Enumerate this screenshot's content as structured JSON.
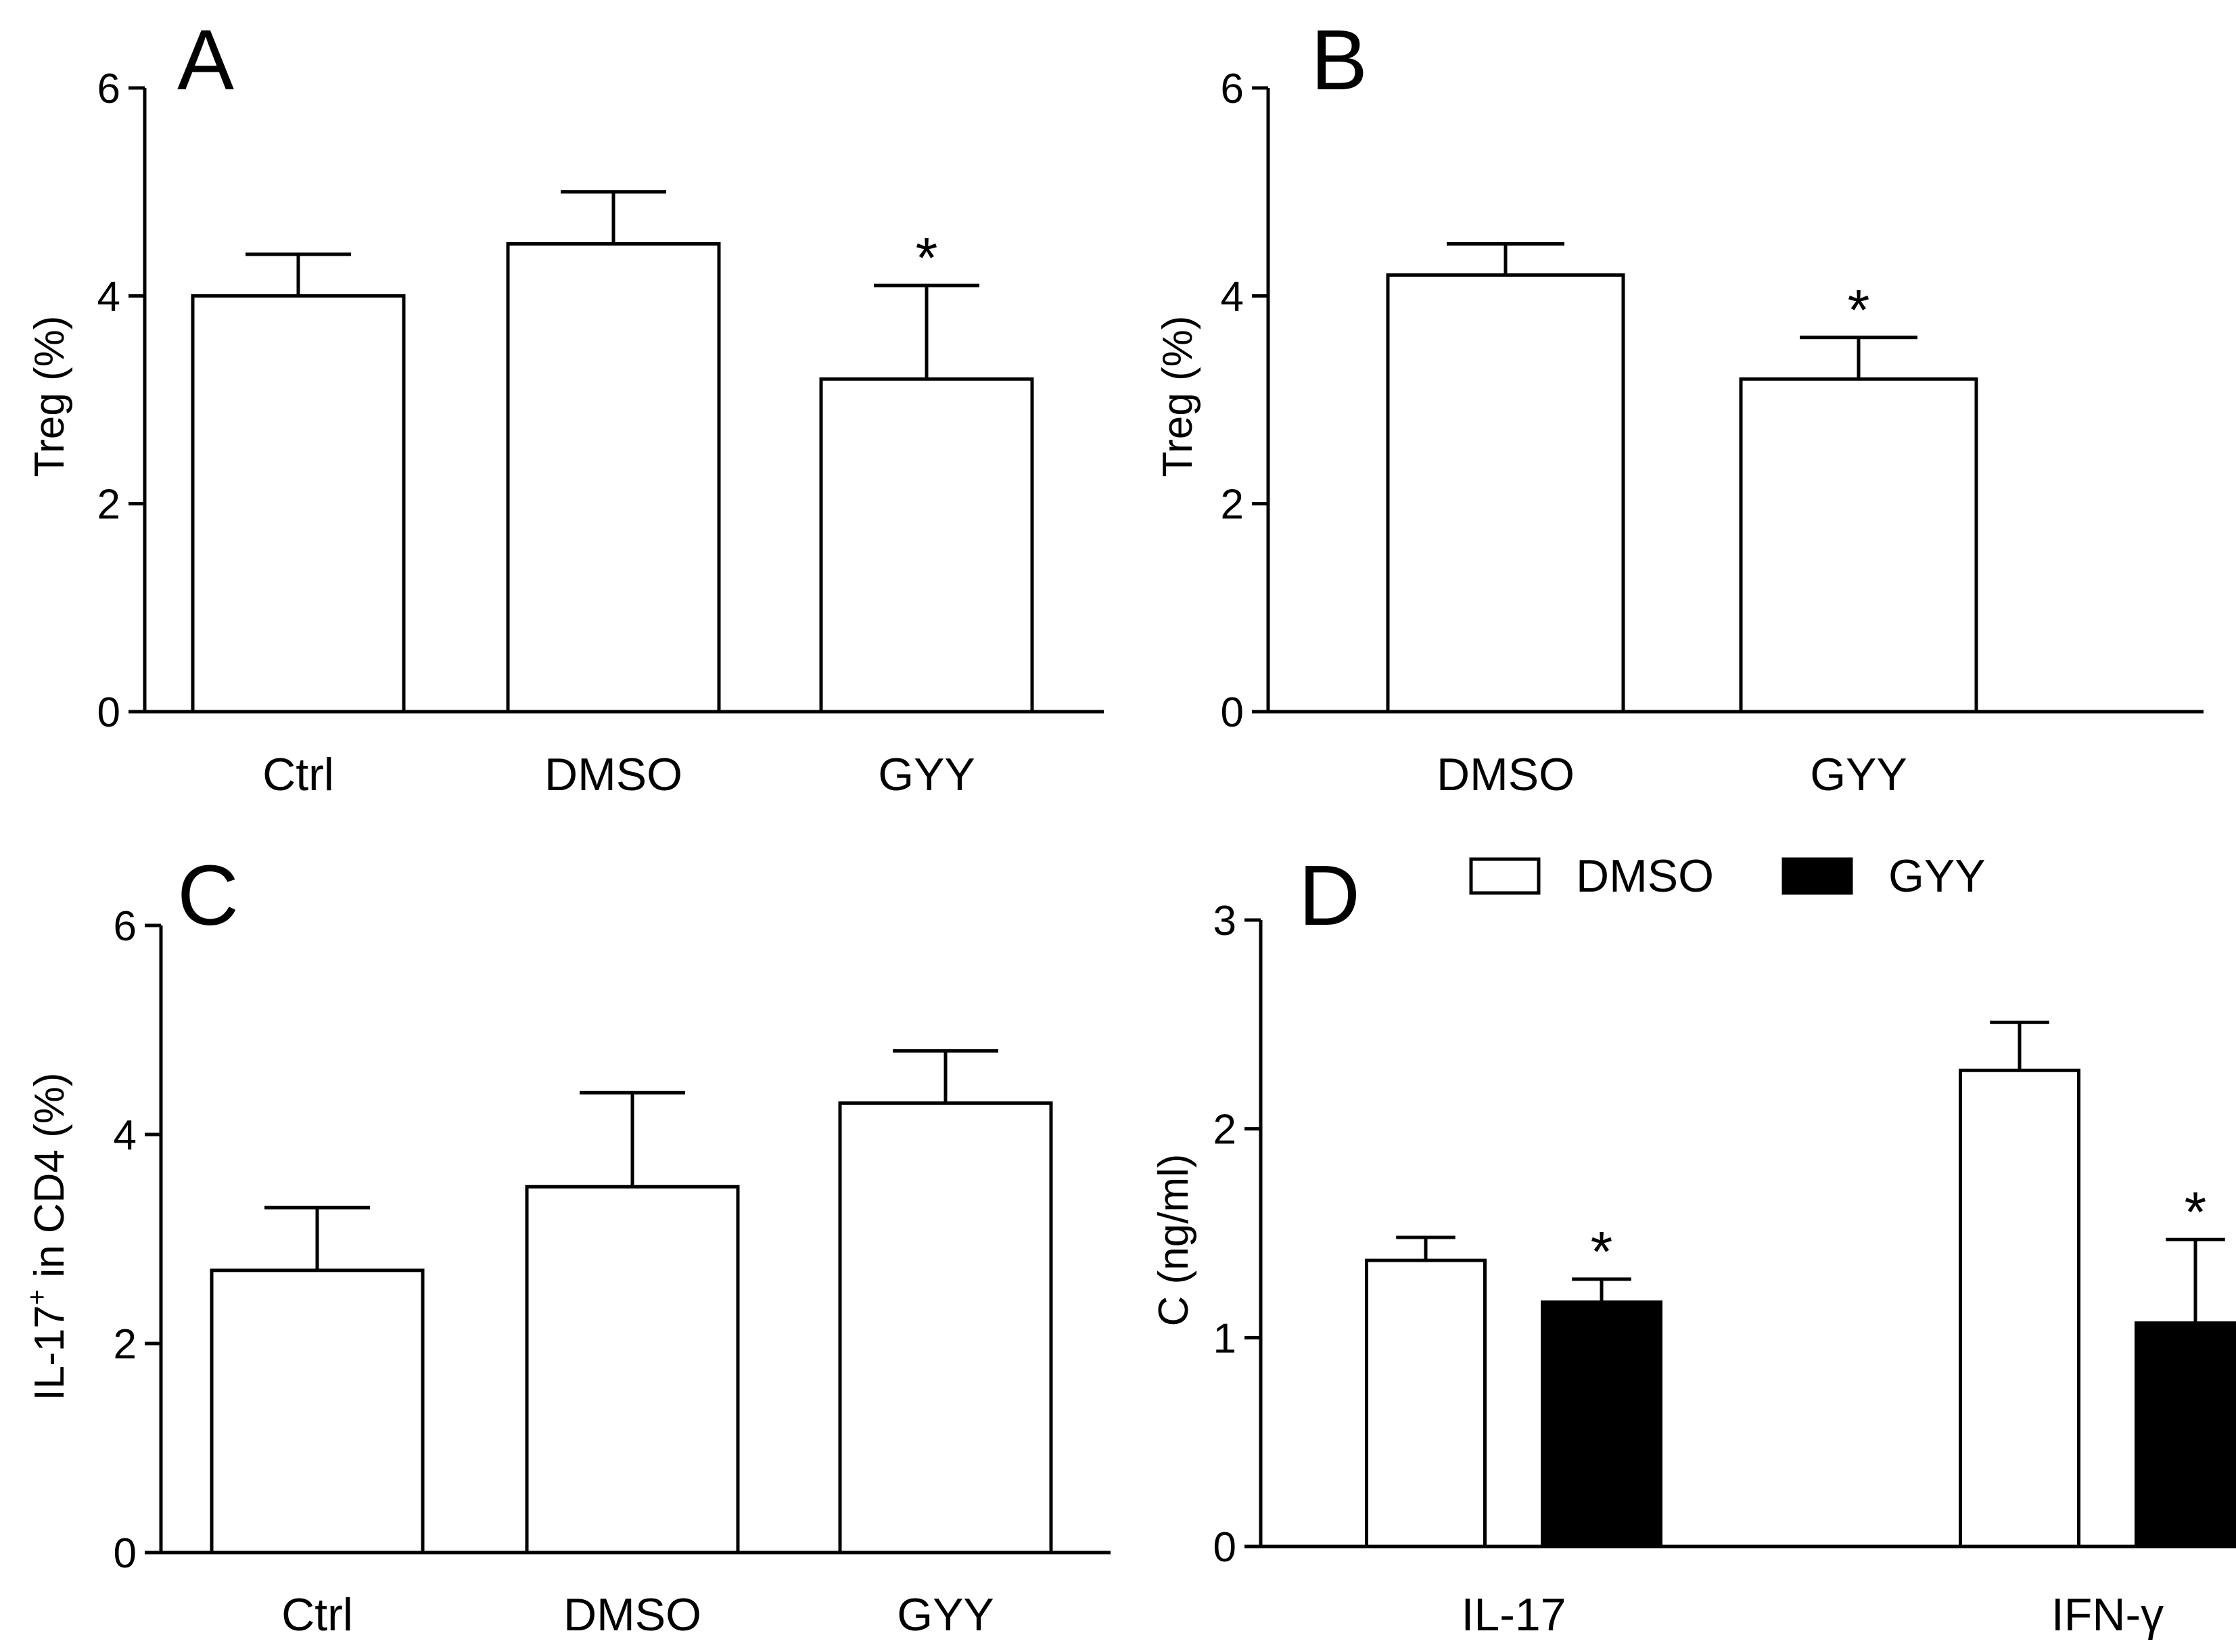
{
  "chart_data": [
    {
      "type": "bar",
      "panel": "A",
      "ylabel": "Treg (%)",
      "ylim": [
        0,
        6
      ],
      "yticks": [
        "0",
        "2",
        "4",
        "6"
      ],
      "categories": [
        "Ctrl",
        "DMSO",
        "GYY"
      ],
      "values": [
        4.0,
        4.5,
        3.2
      ],
      "errors": [
        0.4,
        0.5,
        0.9
      ],
      "fill": "#ffffff",
      "significance": [
        "",
        "",
        "*"
      ]
    },
    {
      "type": "bar",
      "panel": "B",
      "ylabel": "Treg (%)",
      "ylim": [
        0,
        6
      ],
      "yticks": [
        "0",
        "2",
        "4",
        "6"
      ],
      "categories": [
        "DMSO",
        "GYY"
      ],
      "values": [
        4.2,
        3.2
      ],
      "errors": [
        0.3,
        0.4
      ],
      "fill": "#ffffff",
      "significance": [
        "",
        "*"
      ]
    },
    {
      "type": "bar",
      "panel": "C",
      "ylabel_main": "IL-17",
      "ylabel_sup": "+",
      "ylabel_rest": " in CD4 (%)",
      "ylim": [
        0,
        6
      ],
      "yticks": [
        "0",
        "2",
        "4",
        "6"
      ],
      "categories": [
        "Ctrl",
        "DMSO",
        "GYY"
      ],
      "values": [
        2.7,
        3.5,
        4.3
      ],
      "errors": [
        0.6,
        0.9,
        0.5
      ],
      "fill": "#ffffff",
      "significance": [
        "",
        "",
        ""
      ]
    },
    {
      "type": "bar",
      "panel": "D",
      "ylabel": "C (ng/ml)",
      "ylim": [
        0,
        3
      ],
      "yticks": [
        "0",
        "1",
        "2",
        "3"
      ],
      "categories": [
        "IL-17",
        "IFN-γ"
      ],
      "series": [
        {
          "name": "DMSO",
          "color": "#ffffff",
          "values": [
            1.37,
            2.28
          ],
          "errors": [
            0.11,
            0.23
          ],
          "significance": [
            "",
            ""
          ]
        },
        {
          "name": "GYY",
          "color": "#000000",
          "values": [
            1.17,
            1.07
          ],
          "errors": [
            0.11,
            0.4
          ],
          "significance": [
            "*",
            "*"
          ]
        }
      ],
      "legend": "top"
    }
  ]
}
